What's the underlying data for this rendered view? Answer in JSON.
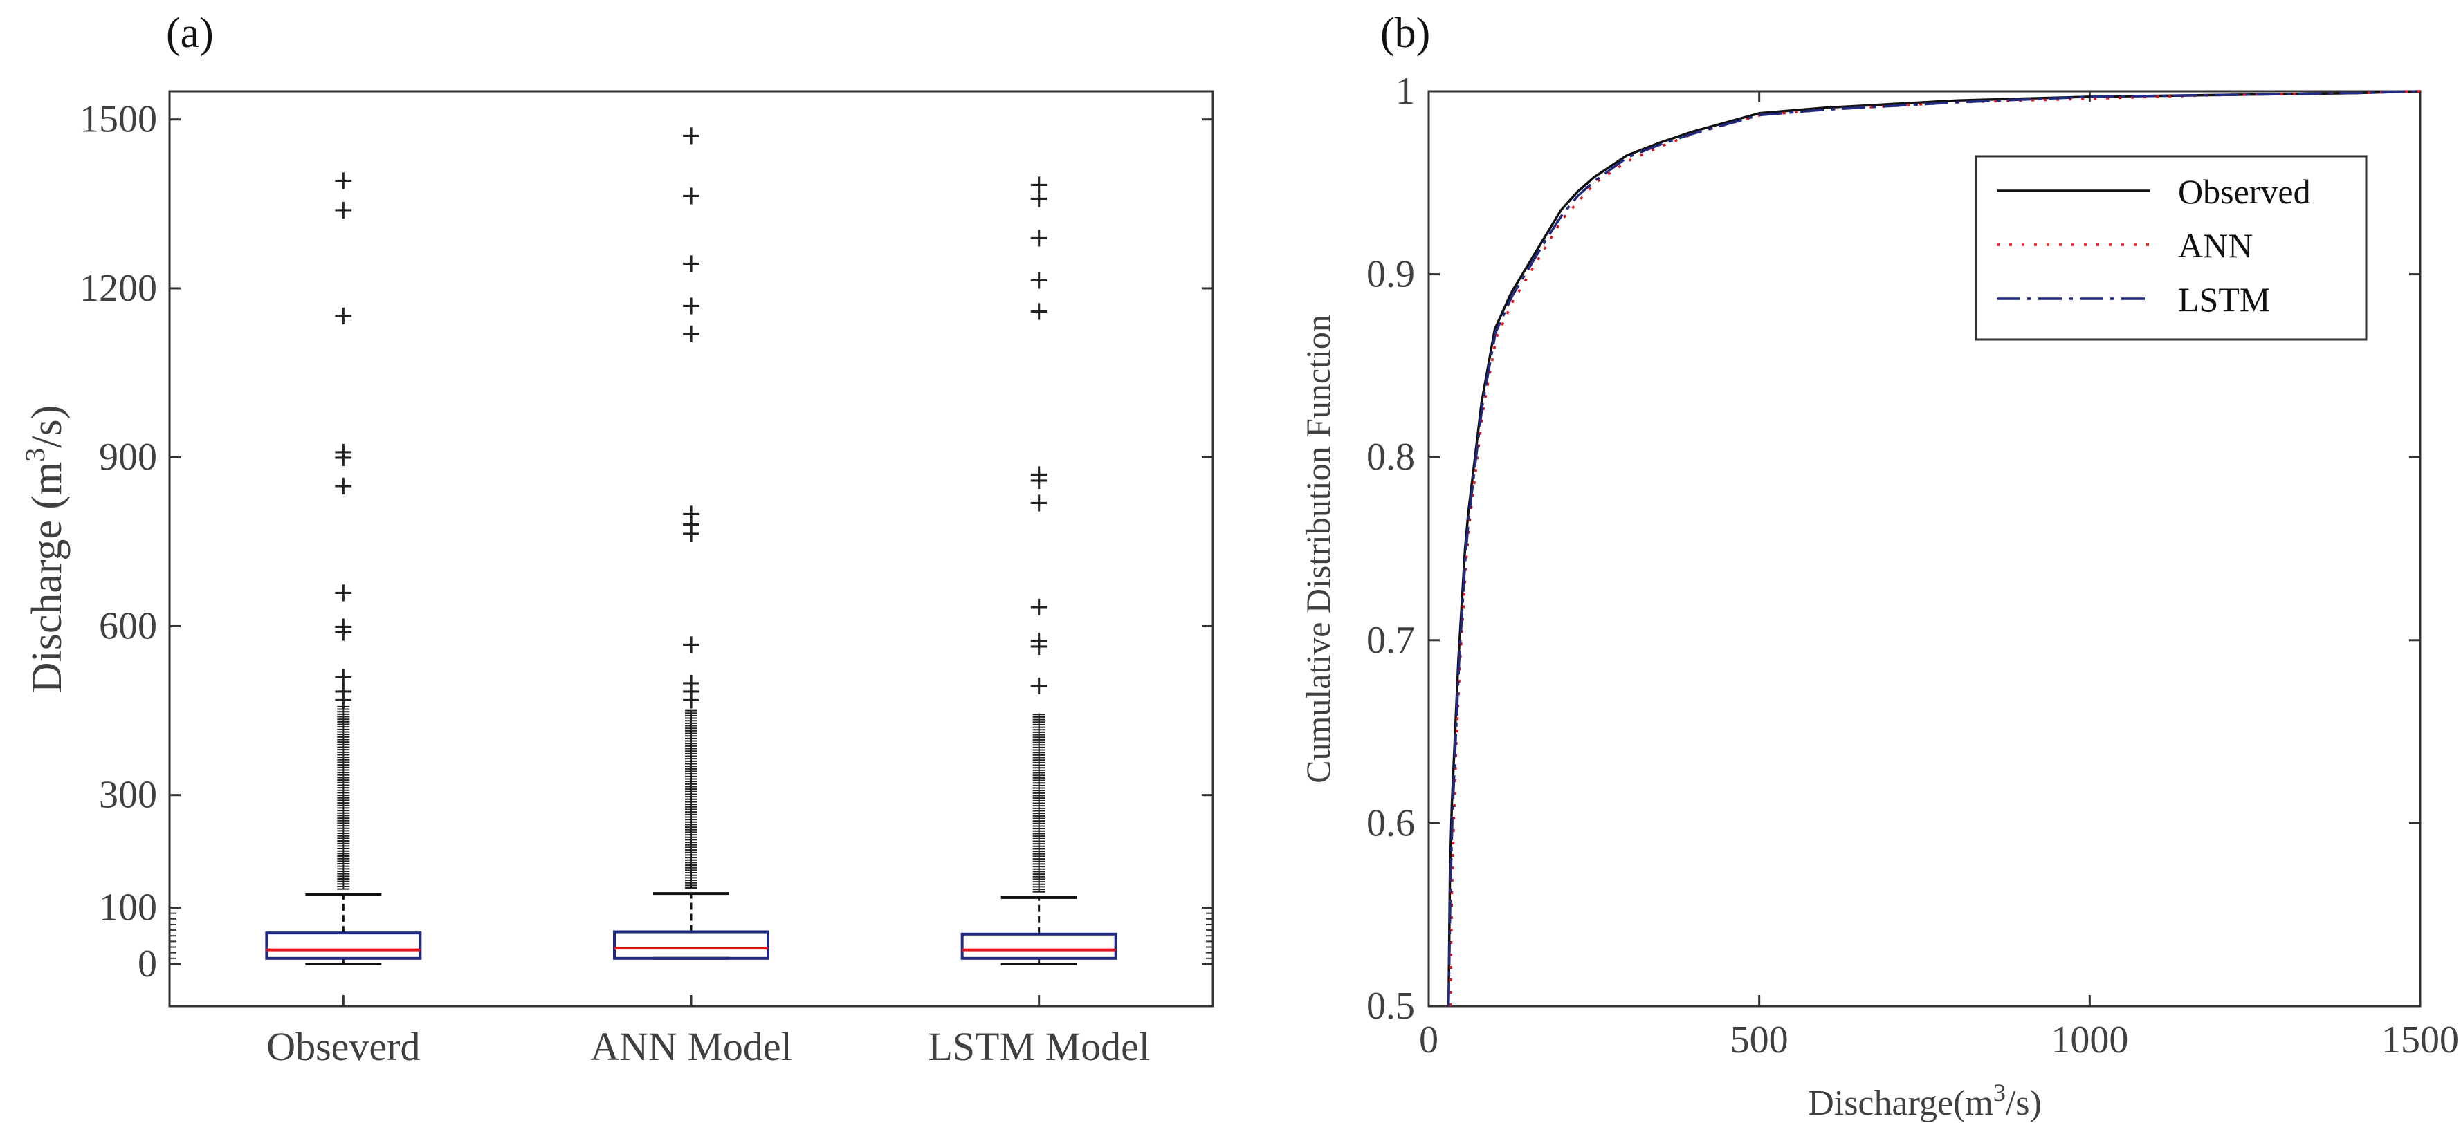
{
  "panels": {
    "a_label": "(a)",
    "b_label": "(b)"
  },
  "chart_data": [
    {
      "type": "box",
      "title": "",
      "ylabel": "Discharge (m³/s)",
      "ylabel_base": "Discharge (m",
      "ylabel_sup": "3",
      "ylabel_tail": "/s)",
      "ylim": [
        -75,
        1550
      ],
      "yticks": [
        0,
        100,
        300,
        600,
        900,
        1200,
        1500
      ],
      "categories": [
        "Obseverd",
        "ANN Model",
        "LSTM Model"
      ],
      "colors": {
        "box": "#1f2a80",
        "median": "#e0141e",
        "whisker": "#111111",
        "outlier": "#222222"
      },
      "boxes": [
        {
          "name": "Obseverd",
          "min": 0,
          "q1": 10,
          "median": 25,
          "q3": 55,
          "max": 123,
          "outlier_dense_to": 460,
          "outliers": [
            1392,
            1340,
            1152,
            910,
            900,
            850,
            660,
            600,
            590,
            510,
            485,
            470
          ]
        },
        {
          "name": "ANN Model",
          "min": 10,
          "q1": 10,
          "median": 28,
          "q3": 57,
          "max": 125,
          "outlier_dense_to": 450,
          "outliers": [
            1472,
            1365,
            1245,
            1170,
            1120,
            800,
            782,
            765,
            568,
            500,
            485,
            470
          ]
        },
        {
          "name": "LSTM Model",
          "min": 0,
          "q1": 10,
          "median": 25,
          "q3": 53,
          "max": 118,
          "outlier_dense_to": 445,
          "outliers": [
            1385,
            1360,
            1290,
            1215,
            1160,
            870,
            860,
            820,
            635,
            575,
            565,
            495
          ]
        }
      ]
    },
    {
      "type": "line",
      "title": "",
      "xlabel": "Discharge(m³/s)",
      "xlabel_base": "Discharge(m",
      "xlabel_sup": "3",
      "xlabel_tail": "/s)",
      "ylabel": "Cumulative Distribution Function",
      "xlim": [
        0,
        1500
      ],
      "ylim": [
        0.5,
        1
      ],
      "xticks": [
        0,
        500,
        1000,
        1500
      ],
      "yticks": [
        0.5,
        0.6,
        0.7,
        0.8,
        0.9,
        1
      ],
      "ytick_labels": [
        "0.5",
        "0.6",
        "0.7",
        "0.8",
        "0.9",
        "1"
      ],
      "legend_position": "top-right",
      "series": [
        {
          "name": "Observed",
          "color": "#111111",
          "style": "solid",
          "x": [
            30,
            32,
            35,
            40,
            45,
            50,
            55,
            60,
            70,
            80,
            90,
            100,
            125,
            150,
            175,
            200,
            225,
            250,
            300,
            350,
            400,
            450,
            500,
            600,
            700,
            800,
            1000,
            1200,
            1400,
            1500
          ],
          "y": [
            0.5,
            0.57,
            0.61,
            0.65,
            0.69,
            0.72,
            0.75,
            0.77,
            0.8,
            0.83,
            0.85,
            0.87,
            0.89,
            0.905,
            0.92,
            0.935,
            0.945,
            0.953,
            0.965,
            0.972,
            0.978,
            0.983,
            0.988,
            0.991,
            0.993,
            0.995,
            0.997,
            0.998,
            0.999,
            1.0
          ]
        },
        {
          "name": "ANN",
          "color": "#e0141e",
          "style": "dotted",
          "x": [
            33,
            35,
            38,
            42,
            47,
            52,
            57,
            62,
            72,
            82,
            92,
            102,
            127,
            152,
            177,
            202,
            227,
            252,
            302,
            352,
            402,
            452,
            502,
            602,
            702,
            802,
            1002,
            1202,
            1402,
            1500
          ],
          "y": [
            0.5,
            0.56,
            0.6,
            0.645,
            0.685,
            0.715,
            0.745,
            0.765,
            0.795,
            0.825,
            0.845,
            0.865,
            0.885,
            0.9,
            0.915,
            0.93,
            0.94,
            0.95,
            0.962,
            0.97,
            0.977,
            0.982,
            0.987,
            0.99,
            0.992,
            0.994,
            0.996,
            0.998,
            0.999,
            1.0
          ]
        },
        {
          "name": "LSTM",
          "color": "#1f2a80",
          "style": "dashdot",
          "x": [
            30,
            33,
            36,
            41,
            46,
            51,
            56,
            61,
            71,
            81,
            91,
            101,
            126,
            151,
            176,
            201,
            226,
            251,
            301,
            351,
            401,
            451,
            501,
            601,
            701,
            801,
            1001,
            1201,
            1401,
            1500
          ],
          "y": [
            0.5,
            0.565,
            0.605,
            0.648,
            0.688,
            0.718,
            0.748,
            0.768,
            0.798,
            0.828,
            0.848,
            0.868,
            0.888,
            0.903,
            0.918,
            0.932,
            0.943,
            0.951,
            0.964,
            0.971,
            0.977,
            0.982,
            0.987,
            0.99,
            0.992,
            0.994,
            0.997,
            0.998,
            0.999,
            1.0
          ]
        }
      ]
    }
  ]
}
